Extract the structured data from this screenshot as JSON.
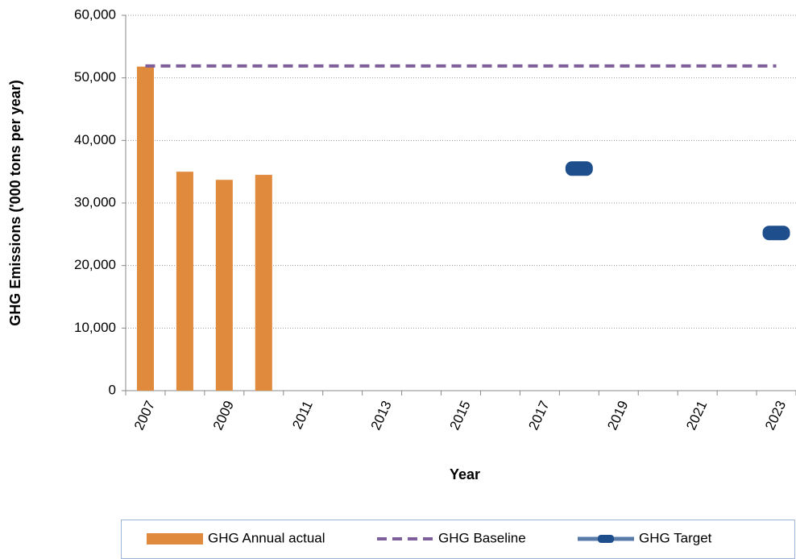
{
  "chart_data": {
    "type": "bar",
    "y_label": "GHG Emissions ('000 tons per year)",
    "x_label": "Year",
    "categories": [
      "2007",
      null,
      "2009",
      null,
      "2011",
      null,
      "2013",
      null,
      "2015",
      null,
      "2017",
      null,
      "2019",
      null,
      "2021",
      null,
      "2023"
    ],
    "series": [
      {
        "name": "GHG Annual actual",
        "type": "bar",
        "color": "#e08a3e",
        "values": [
          51800,
          35000,
          33700,
          34500,
          null,
          null,
          null,
          null,
          null,
          null,
          null,
          null,
          null,
          null,
          null,
          null,
          null
        ]
      },
      {
        "name": "GHG Baseline",
        "type": "line",
        "dashed": true,
        "color": "#7e5f9b",
        "values": [
          51900,
          51900,
          51900,
          51900,
          51900,
          51900,
          51900,
          51900,
          51900,
          51900,
          51900,
          51900,
          51900,
          51900,
          51900,
          51900,
          51900
        ]
      },
      {
        "name": "GHG Target",
        "type": "marker",
        "color": "#1f4e8c",
        "values": [
          null,
          null,
          null,
          null,
          null,
          null,
          null,
          null,
          null,
          null,
          null,
          35500,
          null,
          null,
          null,
          null,
          25200
        ]
      }
    ],
    "ylim": [
      0,
      60000
    ],
    "yticks": [
      0,
      {
        "value": 10000,
        "label": "10,000"
      },
      {
        "value": 20000,
        "label": "20,000"
      },
      {
        "value": 30000,
        "label": "30,000"
      },
      {
        "value": 40000,
        "label": "40,000"
      },
      {
        "value": 50000,
        "label": "50,000"
      },
      {
        "value": 60000,
        "label": "60,000"
      }
    ],
    "grid": true,
    "legend": "bottom"
  }
}
